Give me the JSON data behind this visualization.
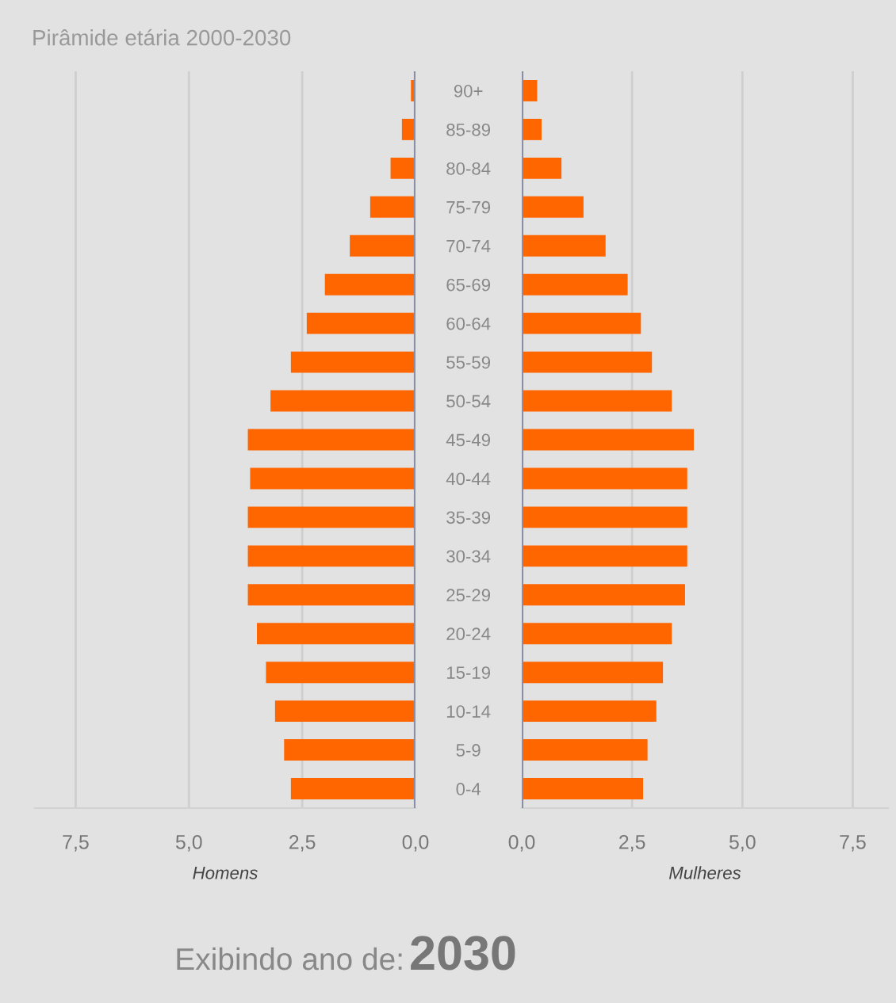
{
  "chart_data": [
    {
      "type": "bar",
      "orientation": "horizontal",
      "title": "Pirâmide etária 2000-2030",
      "xlabel": "Homens",
      "categories": [
        "90+",
        "85-89",
        "80-84",
        "75-79",
        "70-74",
        "65-69",
        "60-64",
        "55-59",
        "50-54",
        "45-49",
        "40-44",
        "35-39",
        "30-34",
        "25-29",
        "20-24",
        "15-19",
        "10-14",
        "5-9",
        "0-4"
      ],
      "values": [
        0.1,
        0.3,
        0.55,
        1.0,
        1.45,
        2.0,
        2.4,
        2.75,
        3.2,
        3.7,
        3.65,
        3.7,
        3.7,
        3.7,
        3.5,
        3.3,
        3.1,
        2.9,
        2.75
      ],
      "color": "#ff6600",
      "xlim": [
        8.4,
        0
      ],
      "xticks": [
        {
          "value": 7.5,
          "label": "7,5"
        },
        {
          "value": 5.0,
          "label": "5,0"
        },
        {
          "value": 2.5,
          "label": "2,5"
        },
        {
          "value": 0,
          "label": "0,0"
        }
      ],
      "grid": "x"
    },
    {
      "type": "bar",
      "orientation": "horizontal",
      "xlabel": "Mulheres",
      "values": [
        0.35,
        0.45,
        0.9,
        1.4,
        1.9,
        2.4,
        2.7,
        2.95,
        3.4,
        3.9,
        3.75,
        3.75,
        3.75,
        3.7,
        3.4,
        3.2,
        3.05,
        2.85,
        2.75
      ],
      "color": "#ff6600",
      "xlim": [
        0,
        8.3
      ],
      "xticks": [
        {
          "value": 0,
          "label": "0,0"
        },
        {
          "value": 2.5,
          "label": "2,5"
        },
        {
          "value": 5.0,
          "label": "5,0"
        },
        {
          "value": 7.5,
          "label": "7,5"
        }
      ],
      "grid": "x",
      "tick_labels": "x",
      "annotations": [
        "Exibindo ano de:",
        "2030"
      ]
    }
  ]
}
